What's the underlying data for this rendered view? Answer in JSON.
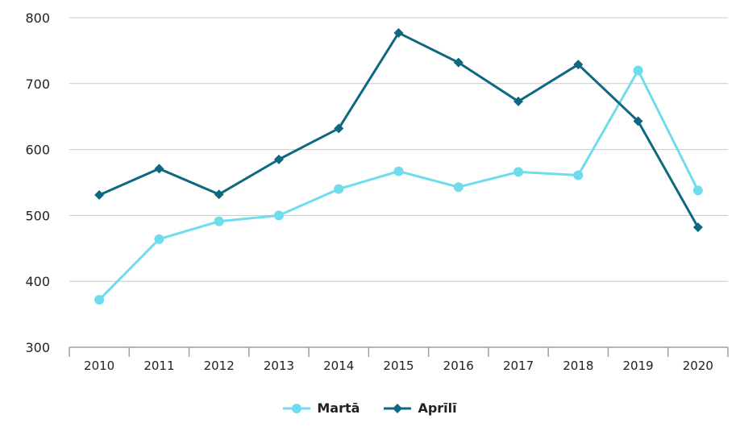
{
  "chart_data": {
    "type": "line",
    "categories": [
      "2010",
      "2011",
      "2012",
      "2013",
      "2014",
      "2015",
      "2016",
      "2017",
      "2018",
      "2019",
      "2020"
    ],
    "ylim": [
      300,
      800
    ],
    "yticks": [
      300,
      400,
      500,
      600,
      700,
      800
    ],
    "grid": true,
    "legend_position": "bottom-center",
    "series": [
      {
        "name": "Martā",
        "color": "#6fdcec",
        "marker": "circle",
        "values": [
          372,
          464,
          491,
          500,
          540,
          567,
          543,
          566,
          561,
          720,
          538
        ]
      },
      {
        "name": "Aprīlī",
        "color": "#0e6880",
        "marker": "diamond",
        "values": [
          531,
          571,
          532,
          585,
          632,
          777,
          732,
          673,
          729,
          643,
          482
        ]
      }
    ]
  }
}
